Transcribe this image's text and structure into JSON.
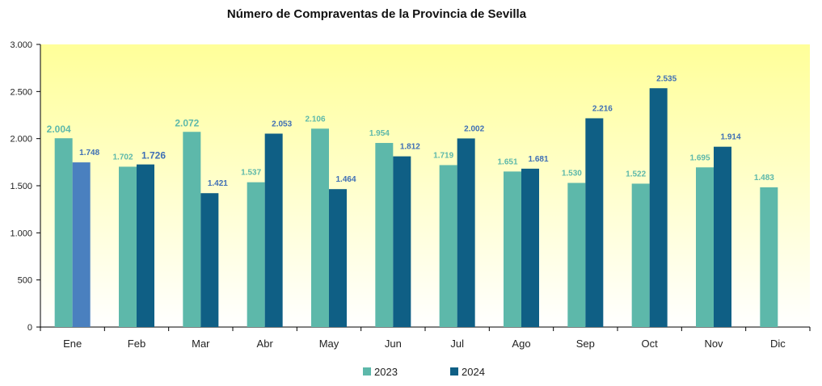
{
  "chart_data": {
    "type": "bar",
    "title": "Número de Compraventas de la Provincia de Sevilla",
    "xlabel": "",
    "ylabel": "",
    "ylim": [
      0,
      3000
    ],
    "yticks": [
      0,
      500,
      1000,
      1500,
      2000,
      2500,
      3000
    ],
    "ytick_labels": [
      "0",
      "500",
      "1.000",
      "1.500",
      "2.000",
      "2.500",
      "3.000"
    ],
    "categories": [
      "Ene",
      "Feb",
      "Mar",
      "Abr",
      "May",
      "Jun",
      "Jul",
      "Ago",
      "Sep",
      "Oct",
      "Nov",
      "Dic"
    ],
    "series": [
      {
        "name": "2023",
        "color": "#5DB8AA",
        "label_color": "#5DB8AA",
        "values": [
          2004,
          1702,
          2072,
          1537,
          2106,
          1954,
          1719,
          1651,
          1530,
          1522,
          1695,
          1483
        ],
        "labels": [
          "2.004",
          "1.702",
          "2.072",
          "1.537",
          "2.106",
          "1.954",
          "1.719",
          "1.651",
          "1.530",
          "1.522",
          "1.695",
          "1.483"
        ]
      },
      {
        "name": "2024",
        "color": "#0F5F85",
        "highlight_color": "#4A80BF",
        "label_color": "#3F6FB5",
        "values": [
          1748,
          1726,
          1421,
          2053,
          1464,
          1812,
          2002,
          1681,
          2216,
          2535,
          1914,
          null
        ],
        "labels": [
          "1.748",
          "1.726",
          "1.421",
          "2.053",
          "1.464",
          "1.812",
          "2.002",
          "1.681",
          "2.216",
          "2.535",
          "1.914",
          null
        ]
      }
    ],
    "legend": {
      "position": "bottom",
      "entries": [
        "2023",
        "2024"
      ]
    },
    "grid": false
  }
}
